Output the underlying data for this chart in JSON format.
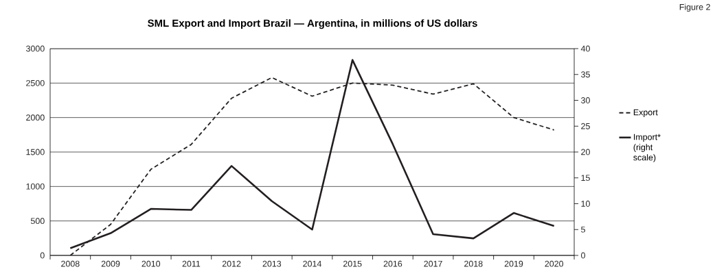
{
  "chart_data": {
    "type": "line",
    "title": "SML Export and Import Brazil — Argentina, in millions of US dollars",
    "annotations": [
      "Figure 2"
    ],
    "categories": [
      "2008",
      "2009",
      "2010",
      "2011",
      "2012",
      "2013",
      "2014",
      "2015",
      "2016",
      "2017",
      "2018",
      "2019",
      "2020"
    ],
    "series": [
      {
        "name": "Export",
        "color": "#231f20",
        "line_style": "dashed",
        "values": [
          0,
          450,
          1250,
          1610,
          2280,
          2580,
          2310,
          2500,
          2470,
          2340,
          2490,
          2000,
          1820
        ]
      },
      {
        "name": "Import* (right scale)",
        "color": "#231f20",
        "line_style": "solid",
        "axis": "y2",
        "values": [
          1.4,
          4.3,
          9.0,
          8.8,
          17.3,
          10.5,
          5.0,
          37.8,
          21.5,
          4.1,
          3.3,
          8.2,
          5.7
        ]
      }
    ],
    "ylim": [
      0,
      3000
    ],
    "yticks": [
      0,
      500,
      1000,
      1500,
      2000,
      2500,
      3000
    ],
    "y2lim": [
      0,
      40
    ],
    "y2ticks": [
      0,
      5,
      10,
      15,
      20,
      25,
      30,
      35,
      40
    ],
    "grid": "y",
    "legend": "right",
    "marker": "none"
  }
}
